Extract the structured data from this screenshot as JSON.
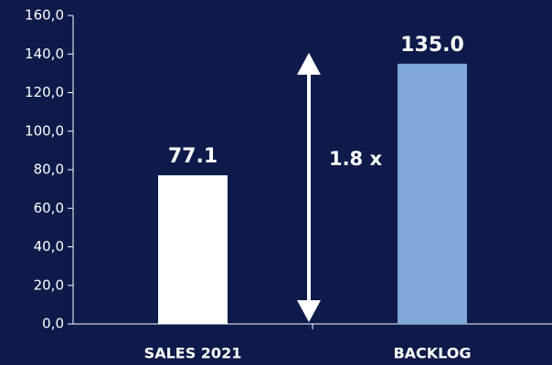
{
  "chart_data": {
    "type": "bar",
    "categories": [
      "SALES 2021",
      "BACKLOG"
    ],
    "series": [
      {
        "values": [
          77.1,
          135.0
        ],
        "value_labels": [
          "77.1",
          "135.0"
        ],
        "colors": [
          "#ffffff",
          "#7fa7d9"
        ]
      }
    ],
    "ylim": [
      0,
      160
    ],
    "yticks": [
      {
        "value": 0,
        "label": "0,0"
      },
      {
        "value": 20,
        "label": "20,0"
      },
      {
        "value": 40,
        "label": "40,0"
      },
      {
        "value": 60,
        "label": "60,0"
      },
      {
        "value": 80,
        "label": "80,0"
      },
      {
        "value": 100,
        "label": "100,0"
      },
      {
        "value": 120,
        "label": "120,0"
      },
      {
        "value": 140,
        "label": "140,0"
      },
      {
        "value": 160,
        "label": "160,0"
      }
    ],
    "annotation": "1.8 x",
    "grid": false
  }
}
